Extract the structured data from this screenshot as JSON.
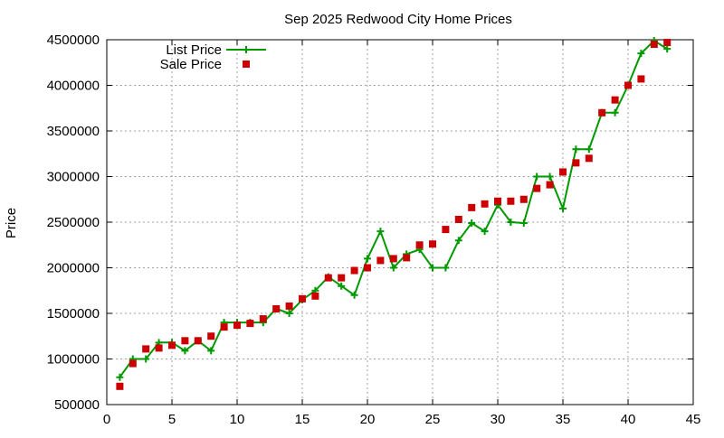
{
  "chart_data": {
    "type": "line",
    "title": "Sep 2025 Redwood City Home Prices",
    "xlabel": "",
    "ylabel": "Price",
    "xlim": [
      0,
      45
    ],
    "ylim": [
      500000,
      4500000
    ],
    "x_ticks": [
      0,
      5,
      10,
      15,
      20,
      25,
      30,
      35,
      40,
      45
    ],
    "y_ticks": [
      500000,
      1000000,
      1500000,
      2000000,
      2500000,
      3000000,
      3500000,
      4000000,
      4500000
    ],
    "grid": true,
    "legend_position": "top-left",
    "series": [
      {
        "name": "List Price",
        "style": "line+cross",
        "color": "#009900",
        "points": [
          [
            1,
            800000
          ],
          [
            2,
            1000000
          ],
          [
            3,
            1000000
          ],
          [
            4,
            1180000
          ],
          [
            5,
            1180000
          ],
          [
            6,
            1090000
          ],
          [
            7,
            1200000
          ],
          [
            8,
            1090000
          ],
          [
            9,
            1400000
          ],
          [
            10,
            1400000
          ],
          [
            11,
            1400000
          ],
          [
            12,
            1400000
          ],
          [
            13,
            1550000
          ],
          [
            14,
            1500000
          ],
          [
            15,
            1650000
          ],
          [
            16,
            1750000
          ],
          [
            17,
            1900000
          ],
          [
            18,
            1800000
          ],
          [
            19,
            1700000
          ],
          [
            20,
            2100000
          ],
          [
            21,
            2400000
          ],
          [
            22,
            2000000
          ],
          [
            23,
            2150000
          ],
          [
            24,
            2200000
          ],
          [
            25,
            2000000
          ],
          [
            26,
            2000000
          ],
          [
            27,
            2300000
          ],
          [
            28,
            2490000
          ],
          [
            29,
            2400000
          ],
          [
            30,
            2690000
          ],
          [
            31,
            2500000
          ],
          [
            32,
            2490000
          ],
          [
            33,
            3000000
          ],
          [
            34,
            3000000
          ],
          [
            35,
            2650000
          ],
          [
            36,
            3300000
          ],
          [
            37,
            3300000
          ],
          [
            38,
            3700000
          ],
          [
            39,
            3700000
          ],
          [
            40,
            4000000
          ],
          [
            41,
            4350000
          ],
          [
            42,
            4490000
          ],
          [
            43,
            4400000
          ]
        ]
      },
      {
        "name": "Sale Price",
        "style": "square",
        "color": "#cc0000",
        "points": [
          [
            1,
            700000
          ],
          [
            2,
            950000
          ],
          [
            3,
            1110000
          ],
          [
            4,
            1120000
          ],
          [
            5,
            1150000
          ],
          [
            6,
            1200000
          ],
          [
            7,
            1200000
          ],
          [
            8,
            1250000
          ],
          [
            9,
            1350000
          ],
          [
            10,
            1370000
          ],
          [
            11,
            1390000
          ],
          [
            12,
            1440000
          ],
          [
            13,
            1550000
          ],
          [
            14,
            1580000
          ],
          [
            15,
            1660000
          ],
          [
            16,
            1690000
          ],
          [
            17,
            1890000
          ],
          [
            18,
            1890000
          ],
          [
            19,
            1970000
          ],
          [
            20,
            2000000
          ],
          [
            21,
            2080000
          ],
          [
            22,
            2100000
          ],
          [
            23,
            2110000
          ],
          [
            24,
            2250000
          ],
          [
            25,
            2260000
          ],
          [
            26,
            2420000
          ],
          [
            27,
            2530000
          ],
          [
            28,
            2660000
          ],
          [
            29,
            2700000
          ],
          [
            30,
            2730000
          ],
          [
            31,
            2730000
          ],
          [
            32,
            2750000
          ],
          [
            33,
            2870000
          ],
          [
            34,
            2910000
          ],
          [
            35,
            3050000
          ],
          [
            36,
            3150000
          ],
          [
            37,
            3200000
          ],
          [
            38,
            3700000
          ],
          [
            39,
            3840000
          ],
          [
            40,
            4000000
          ],
          [
            41,
            4070000
          ],
          [
            42,
            4450000
          ],
          [
            43,
            4470000
          ]
        ]
      }
    ]
  }
}
